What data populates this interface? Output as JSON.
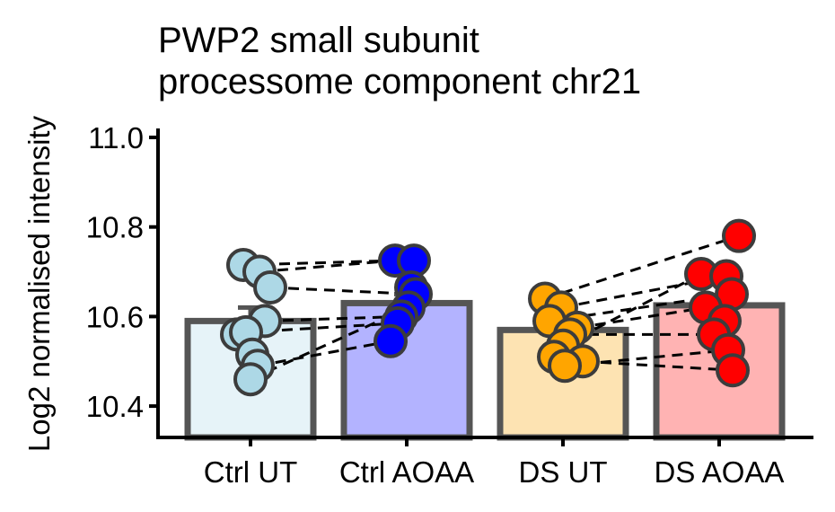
{
  "chart_data": {
    "type": "bar",
    "title": "PWP2 small subunit processome component chr21",
    "title_lines": [
      "PWP2 small subunit",
      "processome component chr21"
    ],
    "xlabel": "",
    "ylabel": "Log2 normalised intensity",
    "ylim": [
      10.33,
      11.02
    ],
    "yticks": [
      10.4,
      10.6,
      10.8,
      11.0
    ],
    "ytick_labels": [
      "10.4",
      "10.6",
      "10.8",
      "11.0"
    ],
    "categories": [
      "Ctrl UT",
      "Ctrl AOAA",
      "DS UT",
      "DS AOAA"
    ],
    "values": [
      10.59,
      10.63,
      10.57,
      10.625
    ],
    "error": [
      0.03,
      0.02,
      0.005,
      0.005
    ],
    "points": [
      [
        10.715,
        10.7,
        10.665,
        10.59,
        10.56,
        10.565,
        10.515,
        10.49,
        10.46
      ],
      [
        10.725,
        10.725,
        10.665,
        10.65,
        10.62,
        10.6,
        10.585,
        10.545
      ],
      [
        10.64,
        10.62,
        10.59,
        10.575,
        10.56,
        10.535,
        10.51,
        10.5,
        10.49
      ],
      [
        10.78,
        10.695,
        10.69,
        10.65,
        10.62,
        10.59,
        10.56,
        10.525,
        10.48
      ]
    ],
    "links": [
      [
        [
          1,
          10.715
        ],
        [
          2,
          10.725
        ]
      ],
      [
        [
          1,
          10.665
        ],
        [
          2,
          10.65
        ]
      ],
      [
        [
          1,
          10.59
        ],
        [
          2,
          10.6
        ]
      ],
      [
        [
          1,
          10.565
        ],
        [
          2,
          10.585
        ]
      ],
      [
        [
          1,
          10.49
        ],
        [
          2,
          10.545
        ]
      ],
      [
        [
          1,
          10.46
        ],
        [
          2,
          10.62
        ]
      ],
      [
        [
          1,
          10.7
        ],
        [
          2,
          10.725
        ]
      ],
      [
        [
          3,
          10.64
        ],
        [
          4,
          10.78
        ]
      ],
      [
        [
          3,
          10.62
        ],
        [
          4,
          10.69
        ]
      ],
      [
        [
          3,
          10.59
        ],
        [
          4,
          10.65
        ]
      ],
      [
        [
          3,
          10.575
        ],
        [
          4,
          10.62
        ]
      ],
      [
        [
          3,
          10.56
        ],
        [
          4,
          10.56
        ]
      ],
      [
        [
          3,
          10.535
        ],
        [
          4,
          10.695
        ]
      ],
      [
        [
          3,
          10.5
        ],
        [
          4,
          10.48
        ]
      ],
      [
        [
          3,
          10.49
        ],
        [
          4,
          10.525
        ]
      ]
    ],
    "colors": {
      "bar_fill": [
        "#e6f3f8",
        "#b3b3ff",
        "#fde3b2",
        "#ffb3b3"
      ],
      "point_fill": [
        "#add8e6",
        "#0000ff",
        "#ffa500",
        "#ff0000"
      ],
      "outline": "#3c3c3c",
      "bar_outline": "#555555",
      "link": "#000000",
      "axis": "#000000"
    }
  }
}
